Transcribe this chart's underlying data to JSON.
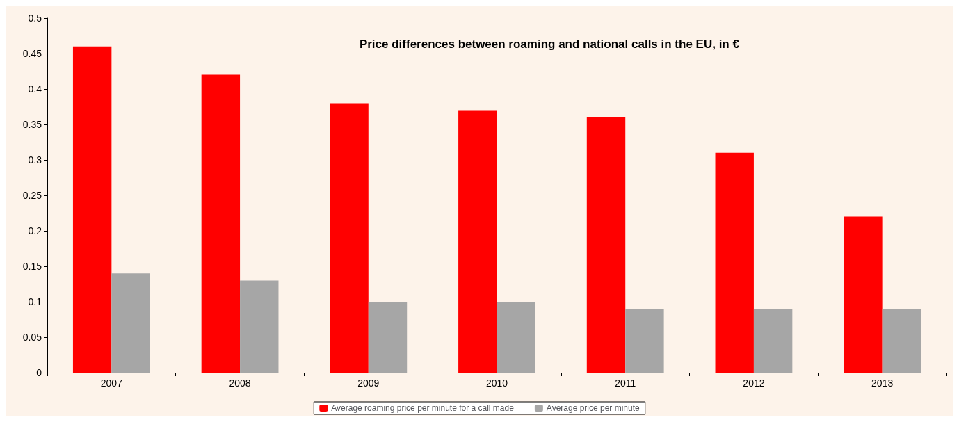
{
  "chart_data": {
    "type": "bar",
    "title": "Price differences between roaming and national calls in the EU, in €",
    "categories": [
      "2007",
      "2008",
      "2009",
      "2010",
      "2011",
      "2012",
      "2013"
    ],
    "series": [
      {
        "name": "Average roaming price per minute for a call made",
        "color": "#ff0000",
        "values": [
          0.46,
          0.42,
          0.38,
          0.37,
          0.36,
          0.31,
          0.22
        ]
      },
      {
        "name": "Average price per minute",
        "color": "#a6a6a6",
        "values": [
          0.14,
          0.13,
          0.1,
          0.1,
          0.09,
          0.09,
          0.09
        ]
      }
    ],
    "ylim": [
      0,
      0.5
    ],
    "yticks": [
      0,
      0.05,
      0.1,
      0.15,
      0.2,
      0.25,
      0.3,
      0.35,
      0.4,
      0.45,
      0.5
    ],
    "grid": false,
    "legend": "bottom"
  }
}
